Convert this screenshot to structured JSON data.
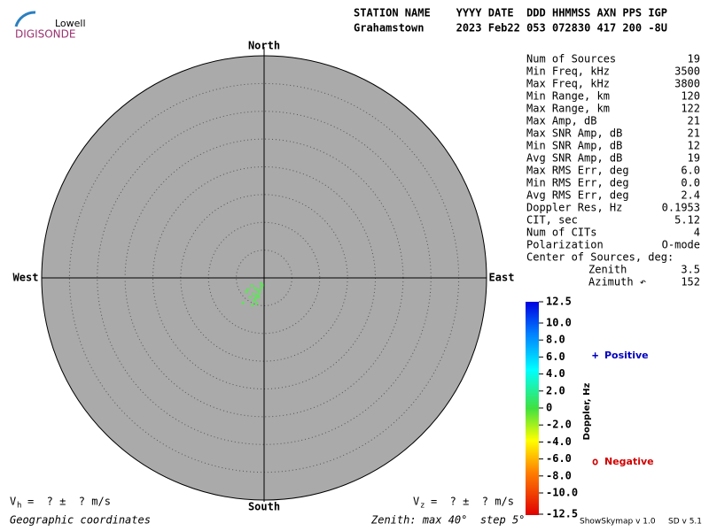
{
  "logo": {
    "top": "Lowell",
    "bottom": "DIGISONDE"
  },
  "header": {
    "labels": "STATION NAME    YYYY DATE  DDD HHMMSS AXN PPS IGP",
    "values": "Grahamstown     2023 Feb22 053 072830 417 200 -8U"
  },
  "stats": [
    [
      "Num of Sources",
      "19"
    ],
    [
      "Min Freq, kHz",
      "3500"
    ],
    [
      "Max Freq, kHz",
      "3800"
    ],
    [
      "Min Range, km",
      "120"
    ],
    [
      "Max Range, km",
      "122"
    ],
    [
      "Max Amp, dB",
      "21"
    ],
    [
      "Max SNR Amp, dB",
      "21"
    ],
    [
      "Min SNR Amp, dB",
      "12"
    ],
    [
      "Avg SNR Amp, dB",
      "19"
    ],
    [
      "Max RMS Err, deg",
      "6.0"
    ],
    [
      "Min RMS Err, deg",
      "0.0"
    ],
    [
      "Avg RMS Err, deg",
      "2.4"
    ],
    [
      "Doppler Res, Hz",
      "0.1953"
    ],
    [
      "CIT, sec",
      "5.12"
    ],
    [
      "Num of CITs",
      "4"
    ],
    [
      "Polarization",
      "O-mode"
    ]
  ],
  "center": {
    "title": "Center of Sources, deg:",
    "rows": [
      [
        "Zenith",
        "3.5"
      ],
      [
        "Azimuth ↶",
        "152"
      ]
    ]
  },
  "chart_data": {
    "type": "skymap",
    "directions": {
      "north": "North",
      "south": "South",
      "west": "West",
      "east": "East"
    },
    "rlim": [
      0,
      40
    ],
    "rticks": [
      5,
      10,
      15,
      20,
      25,
      30,
      35
    ],
    "series": [
      {
        "color": "#66e060",
        "x": [
          -2.2,
          -1.6,
          -1.1,
          -0.8,
          -0.5,
          -1.9,
          -1.4,
          -1.0,
          -3.2,
          -3.8,
          -1.8,
          -1.3,
          -0.6,
          -2.5,
          -0.3,
          -2.1,
          -1.1,
          -2.9,
          -1.6
        ],
        "y": [
          -1.4,
          -1.9,
          -2.2,
          -2.5,
          -1.8,
          -2.9,
          -3.3,
          -3.5,
          -2.5,
          -4.5,
          -4.1,
          -4.6,
          -1.0,
          -3.5,
          -1.3,
          -4.9,
          -3.0,
          -2.1,
          -3.8
        ]
      }
    ],
    "colorbar": {
      "label": "Doppler, Hz",
      "clim": [
        -12.5,
        12.5
      ],
      "ticks": [
        12.5,
        {
          "value": 10,
          "label": "10.0"
        },
        {
          "value": 8,
          "label": "8.0"
        },
        {
          "value": 6,
          "label": "6.0"
        },
        {
          "value": 4,
          "label": "4.0"
        },
        {
          "value": 2,
          "label": "2.0"
        },
        0,
        {
          "value": -2,
          "label": "-2.0"
        },
        {
          "value": -4,
          "label": "-4.0"
        },
        {
          "value": -6,
          "label": "-6.0"
        },
        {
          "value": -8,
          "label": "-8.0"
        },
        {
          "value": -10,
          "label": "-10.0"
        },
        -12.5
      ]
    },
    "legend": [
      {
        "symbol": "+",
        "label": "Positive",
        "color": "#0000c0"
      },
      {
        "symbol": "o",
        "label": "Negative",
        "color": "#d00000"
      }
    ]
  },
  "velocity": {
    "vh": {
      "name": "V",
      "sub": "h",
      "text": "=  ? ±  ? m/s"
    },
    "vz": {
      "name": "V",
      "sub": "z",
      "text": "=  ? ±  ? m/s"
    }
  },
  "footer": {
    "coords": "Geographic coordinates",
    "zenith": "Zenith: max 40°  step 5°",
    "app": "ShowSkymap v 1.0",
    "sd": "SD v 5.1"
  }
}
